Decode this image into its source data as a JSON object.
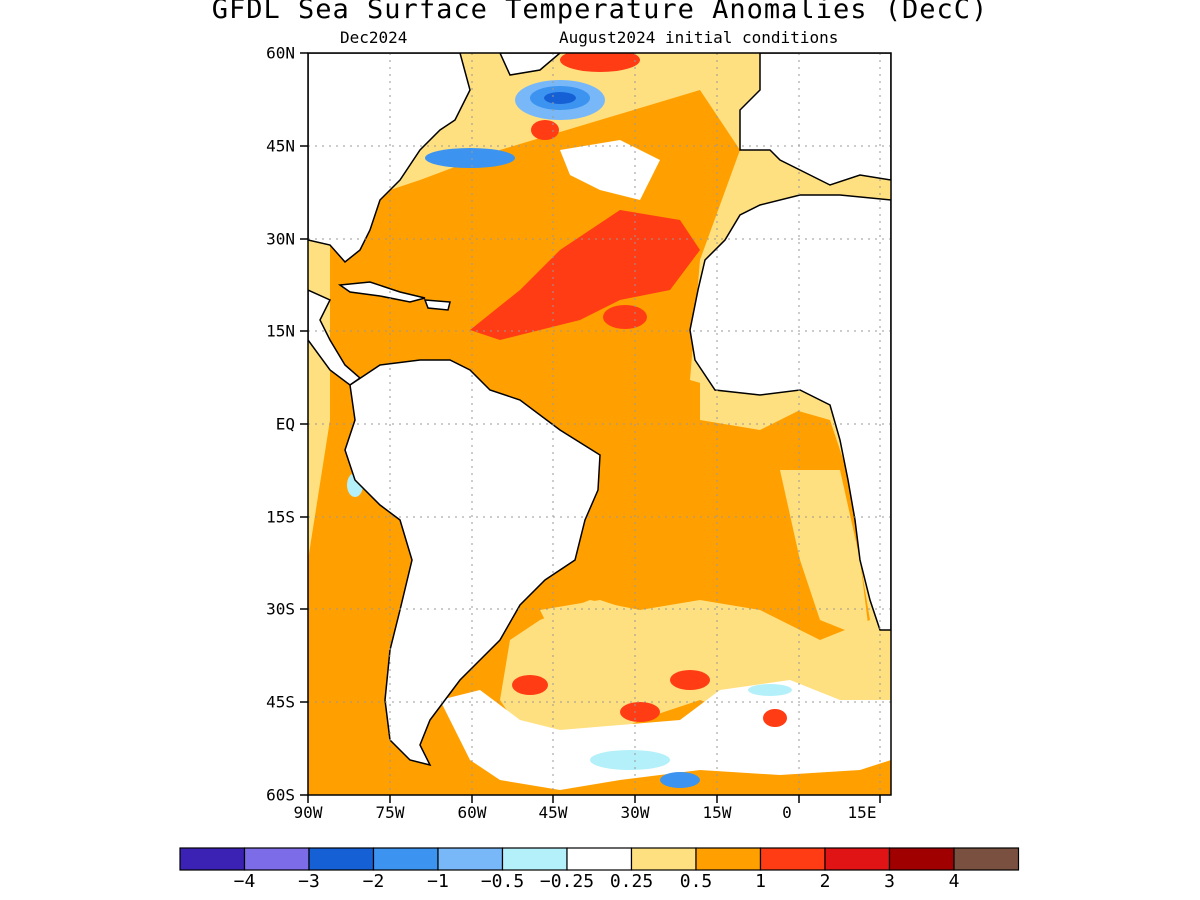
{
  "title": "GFDL Sea Surface Temperature Anomalies (DecC)",
  "subtitle_left": "Dec2024",
  "subtitle_right": "August2024 initial conditions",
  "y_tick_labels": [
    "60N",
    "45N",
    "30N",
    "15N",
    "EQ",
    "15S",
    "30S",
    "45S",
    "60S"
  ],
  "x_tick_labels": [
    "90W",
    "75W",
    "60W",
    "45W",
    "30W",
    "15W",
    "0",
    "15E"
  ],
  "colorbar": {
    "colors": [
      "#3c22b4",
      "#7c6ce8",
      "#1660d6",
      "#3c94f0",
      "#78b8f8",
      "#b4f0fa",
      "#ffffff",
      "#ffe080",
      "#ffa000",
      "#ff3c14",
      "#e01414",
      "#a00000",
      "#7a5040"
    ],
    "labels": [
      "−4",
      "−3",
      "−2",
      "−1",
      "−0.5",
      "−0.25",
      "0.25",
      "0.5",
      "1",
      "2",
      "3",
      "4"
    ]
  },
  "chart_data": {
    "type": "heatmap",
    "title": "GFDL Sea Surface Temperature Anomalies (DecC)",
    "valid_month": "Dec2024",
    "initial_conditions": "August2024 initial conditions",
    "lon_range": [
      -90,
      17
    ],
    "lat_range": [
      -60,
      60
    ],
    "units": "DecC",
    "contour_levels": [
      -4,
      -3,
      -2,
      -1,
      -0.5,
      -0.25,
      0.25,
      0.5,
      1,
      2,
      3,
      4
    ],
    "grid": true
  }
}
